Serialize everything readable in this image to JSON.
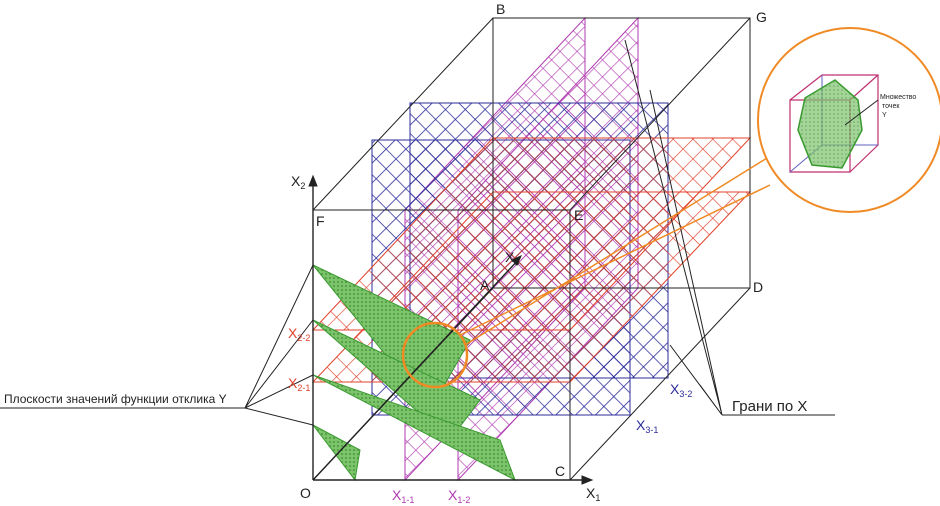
{
  "points": {
    "B": "B",
    "G": "G",
    "F": "F",
    "E": "E",
    "A": "A",
    "D": "D",
    "C": "C",
    "O": "O"
  },
  "axes": {
    "x1": {
      "main": "X",
      "sub": "1"
    },
    "x2": {
      "main": "X",
      "sub": "2"
    },
    "x3": {
      "main": "X",
      "sub": "3"
    }
  },
  "planes": {
    "x1_1": {
      "main": "X",
      "sub": "1-1"
    },
    "x1_2": {
      "main": "X",
      "sub": "1-2"
    },
    "x2_1": {
      "main": "X",
      "sub": "2-1"
    },
    "x2_2": {
      "main": "X",
      "sub": "2-2"
    },
    "x3_1": {
      "main": "X",
      "sub": "3-1"
    },
    "x3_2": {
      "main": "X",
      "sub": "3-2"
    }
  },
  "labels": {
    "response_planes": "Плоскости значений функции отклика Y",
    "faces": "Грани по X",
    "point_set": "Множество точек Y"
  }
}
